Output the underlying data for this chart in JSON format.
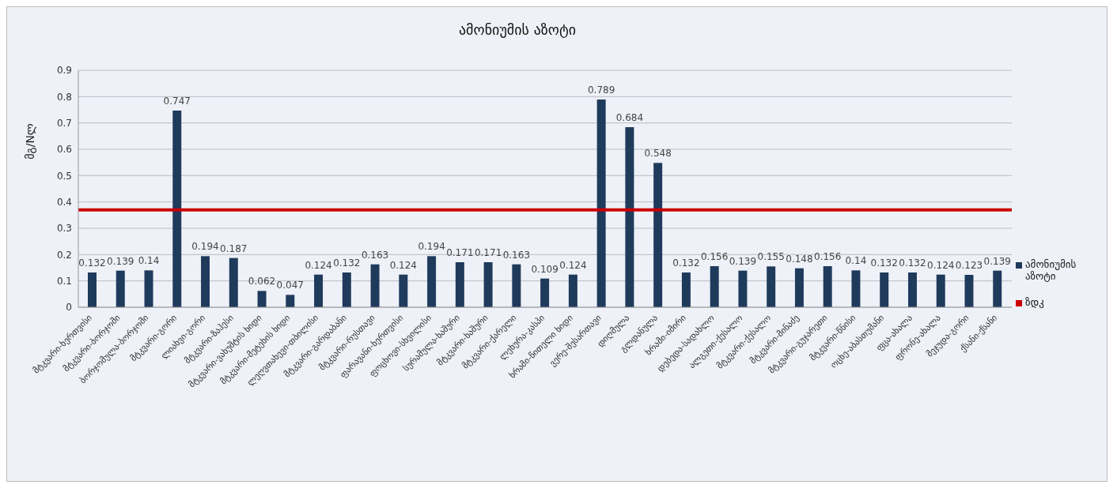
{
  "chart_data": {
    "type": "bar",
    "title": "ამონიუმის აზოტი",
    "ylabel": "მგ/Nლ",
    "categories": [
      "მტკვარი-ხერთვისი",
      "მტკვარი-ბორჯომი",
      "ბორჯომულა-ბორჯომი",
      "მტკვარი-გორი",
      "ლიახვი-გორი",
      "მტკვარი-ზაჰესი",
      "მტკვარი-ვახუშტის ხიდი",
      "მტკვარი-მეტეხის ხიდი",
      "ლეღვთახევი-თბილისი",
      "მტკვარი-გარდაბანი",
      "მტკვარი-რუსთავი",
      "ფარავანი-ხერთვისი",
      "ფოცხოვი-სხვილისი",
      "სურამულა-ხაშური",
      "მტკვარი-ხაშური",
      "მტკვარი-ქარელი",
      "ლეხურა-კასპი",
      "ხრამი-წითელი ხიდი",
      "ვერე-შესართავი",
      "დიღმულა",
      "გლდანულა",
      "ხრამი-იმირი",
      "დებედა-სადახლო",
      "ალგეთი-ქესალო",
      "მტკვარი-ქესალო",
      "მტკვარი-მინაძე",
      "მტკვარი-გუჯარეთი",
      "მტკვარი-წნისი",
      "ოცხე-აბასთუმანი",
      "ფცა-ახალა",
      "ფრონე-ახალა",
      "მეჯუდა-გორი",
      "ქსანი-ქსანი"
    ],
    "series": [
      {
        "name": "ამონიუმის აზოტი",
        "color": "#1f3b5c",
        "values": [
          0.132,
          0.139,
          0.14,
          0.747,
          0.194,
          0.187,
          0.062,
          0.047,
          0.124,
          0.132,
          0.163,
          0.124,
          0.194,
          0.171,
          0.171,
          0.163,
          0.109,
          0.124,
          0.789,
          0.684,
          0.548,
          0.132,
          0.156,
          0.139,
          0.155,
          0.148,
          0.156,
          0.14,
          0.132,
          0.132,
          0.124,
          0.123,
          0.139
        ]
      }
    ],
    "ylim": [
      0,
      0.9
    ],
    "yticks": [
      0,
      0.1,
      0.2,
      0.3,
      0.4,
      0.5,
      0.6,
      0.7,
      0.8,
      0.9
    ],
    "grid": "y",
    "legend": "right",
    "data_labels": true,
    "ref_lines": [
      {
        "axis": "y",
        "value": 0.37,
        "label": "ზდკ",
        "color": "#cc0000"
      }
    ]
  }
}
